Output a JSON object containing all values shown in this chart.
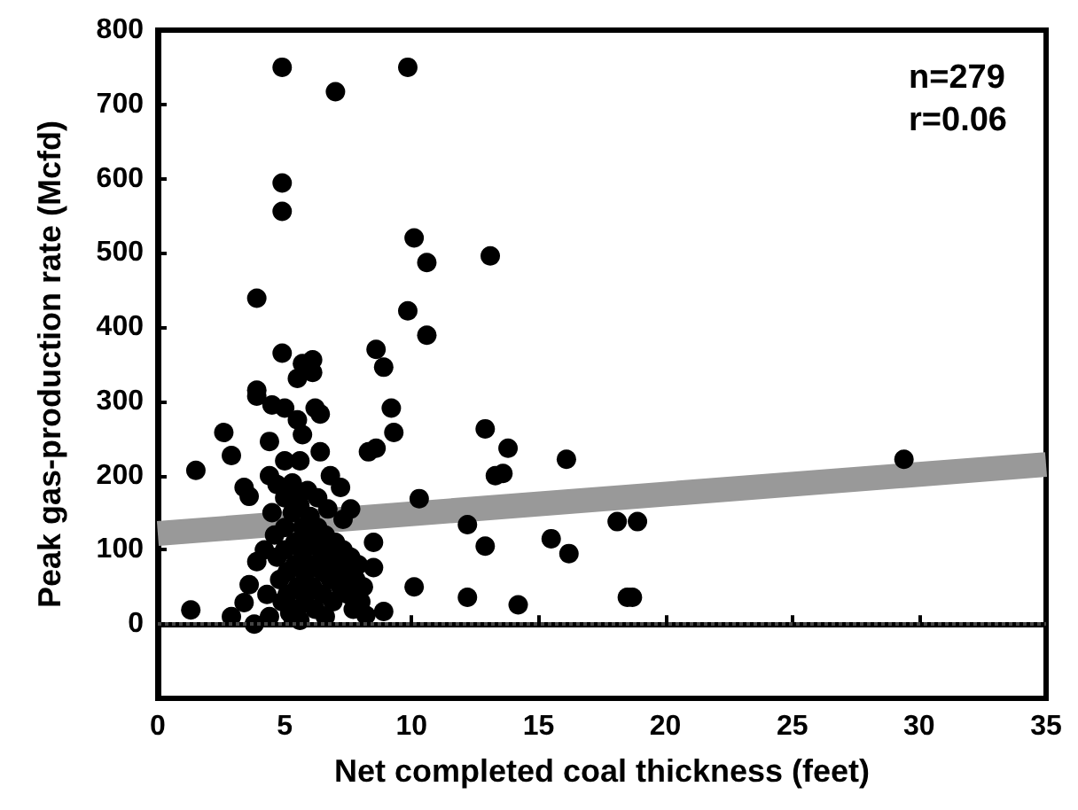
{
  "chart_data": {
    "type": "scatter",
    "xlabel": "Net completed coal thickness (feet)",
    "ylabel": "Peak gas-production rate (Mcfd)",
    "annotations": [
      "n=279",
      "r=0.06"
    ],
    "xlim": [
      0,
      35
    ],
    "xticks": [
      0,
      5,
      10,
      15,
      20,
      25,
      30,
      35
    ],
    "ylim": [
      -100,
      800
    ],
    "yticks": [
      0,
      100,
      200,
      300,
      400,
      500,
      600,
      700,
      800
    ],
    "marker": "circle",
    "ref_lines": [
      {
        "axis": "y",
        "value": 0,
        "label": null,
        "color": "#444444",
        "line_style": "dotted"
      }
    ],
    "series": [
      {
        "color": "#000000",
        "x": [
          4.9,
          9.85,
          7.0,
          4.9,
          4.9,
          10.1,
          10.6,
          13.1,
          3.9,
          9.85,
          10.6,
          4.9,
          8.6,
          8.9,
          5.7,
          6.1,
          5.5,
          6.1,
          3.9,
          3.9,
          9.2,
          9.3,
          12.9,
          2.6,
          2.9,
          1.5,
          8.3,
          8.6,
          4.4,
          5.0,
          5.6,
          6.4,
          6.2,
          6.4,
          4.5,
          5.0,
          5.5,
          5.7,
          4.4,
          4.7,
          5.5,
          6.8,
          7.2,
          3.4,
          3.6,
          10.3,
          13.3,
          7.6,
          7.3,
          6.7,
          12.2,
          12.9,
          8.5,
          3.9,
          3.6,
          3.4,
          1.3,
          2.9,
          3.8,
          10.1,
          12.2,
          8.9,
          8.2,
          13.8,
          13.6,
          16.1,
          15.5,
          16.2,
          18.1,
          18.9,
          18.7,
          18.5,
          14.2,
          8.5,
          29.4,
          4.5,
          4.6,
          4.7,
          4.8,
          4.9,
          5.0,
          5.0,
          5.0,
          5.1,
          5.1,
          5.2,
          5.3,
          5.3,
          5.4,
          5.4,
          5.5,
          5.5,
          5.6,
          5.7,
          5.7,
          5.8,
          5.8,
          5.9,
          6.0,
          6.0,
          6.1,
          6.1,
          6.2,
          6.3,
          6.3,
          6.4,
          6.5,
          6.5,
          6.6,
          6.7,
          6.8,
          6.9,
          7.0,
          7.1,
          7.2,
          7.3,
          7.4,
          7.5,
          7.6,
          7.8,
          8.0,
          8.1,
          4.3,
          4.2,
          4.4,
          5.6,
          6.6,
          7.7,
          7.9
        ],
        "values": [
          750,
          750,
          717,
          594,
          556,
          520,
          487,
          496,
          439,
          422,
          389,
          365,
          370,
          346,
          351,
          356,
          331,
          339,
          315,
          307,
          291,
          258,
          263,
          258,
          227,
          207,
          232,
          237,
          246,
          220,
          220,
          232,
          291,
          283,
          295,
          291,
          275,
          255,
          200,
          188,
          179,
          200,
          184,
          184,
          172,
          169,
          200,
          155,
          141,
          155,
          134,
          105,
          110,
          84,
          53,
          29,
          19,
          10,
          0,
          50,
          36,
          17,
          12,
          237,
          203,
          222,
          115,
          95,
          138,
          138,
          36,
          36,
          26,
          76,
          222,
          150,
          120,
          90,
          60,
          30,
          170,
          130,
          100,
          70,
          40,
          15,
          190,
          150,
          110,
          80,
          50,
          20,
          160,
          130,
          95,
          65,
          35,
          180,
          145,
          110,
          80,
          50,
          20,
          170,
          130,
          100,
          70,
          40,
          120,
          90,
          60,
          30,
          110,
          80,
          50,
          100,
          70,
          40,
          90,
          60,
          30,
          50,
          40,
          100,
          10,
          5,
          10,
          20,
          80
        ]
      },
      {
        "type": "line",
        "color": "#999999",
        "marker": "none",
        "x": [
          0,
          35
        ],
        "values": [
          122,
          215
        ]
      }
    ]
  }
}
